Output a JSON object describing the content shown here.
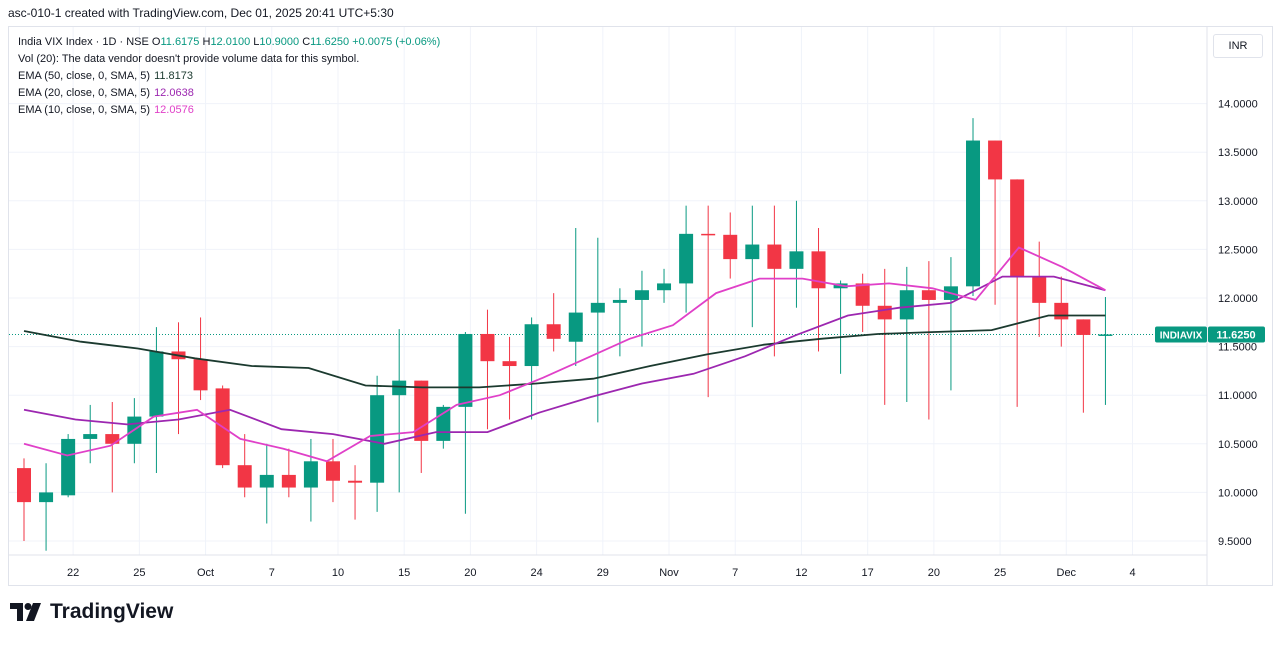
{
  "header": {
    "text": "asc-010-1 created with TradingView.com, Dec 01, 2025 20:41 UTC+5:30"
  },
  "legend": {
    "symbol": "India VIX Index · 1D · NSE",
    "o_label": "O",
    "o": "11.6175",
    "h_label": "H",
    "h": "12.0100",
    "l_label": "L",
    "l": "10.9000",
    "c_label": "C",
    "c": "11.6250",
    "change": "+0.0075 (+0.06%)",
    "vol": "Vol (20): The data vendor doesn't provide volume data for this symbol.",
    "ema50_label": "EMA (50, close, 0, SMA, 5)",
    "ema50_value": "11.8173",
    "ema20_label": "EMA (20, close, 0, SMA, 5)",
    "ema20_value": "12.0638",
    "ema10_label": "EMA (10, close, 0, SMA, 5)",
    "ema10_value": "12.0576"
  },
  "currency": "INR",
  "price_tag": {
    "symbol": "INDIAVIX",
    "value": "11.6250"
  },
  "footer": {
    "brand": "TradingView"
  },
  "colors": {
    "up": "#089981",
    "down": "#f23645",
    "ema50": "#1b3a2f",
    "ema20": "#9c27b0",
    "ema10": "#e040c8"
  },
  "chart_data": {
    "type": "candlestick",
    "yticks": [
      "9.5000",
      "10.0000",
      "10.5000",
      "11.0000",
      "11.5000",
      "12.0000",
      "12.5000",
      "13.0000",
      "13.5000",
      "14.0000"
    ],
    "ylim": [
      9.1,
      14.4
    ],
    "xticks": [
      {
        "label": "22",
        "i": 2
      },
      {
        "label": "25",
        "i": 5
      },
      {
        "label": "Oct",
        "i": 8
      },
      {
        "label": "7",
        "i": 11
      },
      {
        "label": "10",
        "i": 14
      },
      {
        "label": "15",
        "i": 17
      },
      {
        "label": "20",
        "i": 20
      },
      {
        "label": "24",
        "i": 23
      },
      {
        "label": "29",
        "i": 26
      },
      {
        "label": "Nov",
        "i": 29
      },
      {
        "label": "7",
        "i": 32
      },
      {
        "label": "12",
        "i": 35
      },
      {
        "label": "17",
        "i": 38
      },
      {
        "label": "20",
        "i": 41
      },
      {
        "label": "25",
        "i": 44
      },
      {
        "label": "Dec",
        "i": 47
      },
      {
        "label": "4",
        "i": 50
      }
    ],
    "candles": [
      [
        10.25,
        10.35,
        9.5,
        9.9
      ],
      [
        9.9,
        10.3,
        9.4,
        10.0
      ],
      [
        9.97,
        10.6,
        9.95,
        10.55
      ],
      [
        10.55,
        10.9,
        10.3,
        10.6
      ],
      [
        10.6,
        10.93,
        10.0,
        10.5
      ],
      [
        10.5,
        10.97,
        10.3,
        10.78
      ],
      [
        10.78,
        11.7,
        10.2,
        11.45
      ],
      [
        11.45,
        11.75,
        10.6,
        11.37
      ],
      [
        11.37,
        11.8,
        10.95,
        11.05
      ],
      [
        11.07,
        11.1,
        10.25,
        10.28
      ],
      [
        10.28,
        10.6,
        9.95,
        10.05
      ],
      [
        10.05,
        10.5,
        9.68,
        10.18
      ],
      [
        10.18,
        10.45,
        9.95,
        10.05
      ],
      [
        10.05,
        10.55,
        9.7,
        10.32
      ],
      [
        10.32,
        10.55,
        9.9,
        10.12
      ],
      [
        10.12,
        10.28,
        9.72,
        10.1
      ],
      [
        10.1,
        11.2,
        9.8,
        11.0
      ],
      [
        11.0,
        11.68,
        10.0,
        11.15
      ],
      [
        11.15,
        11.15,
        10.2,
        10.53
      ],
      [
        10.53,
        10.9,
        10.45,
        10.88
      ],
      [
        10.88,
        11.65,
        9.78,
        11.63
      ],
      [
        11.63,
        11.88,
        10.65,
        11.35
      ],
      [
        11.35,
        11.6,
        10.75,
        11.3
      ],
      [
        11.3,
        11.8,
        10.75,
        11.73
      ],
      [
        11.73,
        12.05,
        11.45,
        11.58
      ],
      [
        11.55,
        12.72,
        11.3,
        11.85
      ],
      [
        11.85,
        12.62,
        10.72,
        11.95
      ],
      [
        11.95,
        12.1,
        11.4,
        11.98
      ],
      [
        11.98,
        12.28,
        11.5,
        12.08
      ],
      [
        12.08,
        12.3,
        11.95,
        12.15
      ],
      [
        12.15,
        12.95,
        11.85,
        12.66
      ],
      [
        12.66,
        12.95,
        10.98,
        12.65
      ],
      [
        12.65,
        12.88,
        12.2,
        12.4
      ],
      [
        12.4,
        12.95,
        11.7,
        12.55
      ],
      [
        12.55,
        12.95,
        11.4,
        12.3
      ],
      [
        12.3,
        13.0,
        11.9,
        12.48
      ],
      [
        12.48,
        12.72,
        11.45,
        12.1
      ],
      [
        12.1,
        12.18,
        11.22,
        12.15
      ],
      [
        12.15,
        12.25,
        11.65,
        11.92
      ],
      [
        11.92,
        12.3,
        10.9,
        11.78
      ],
      [
        11.78,
        12.32,
        10.93,
        12.08
      ],
      [
        12.08,
        12.38,
        10.75,
        11.98
      ],
      [
        11.98,
        12.42,
        11.05,
        12.12
      ],
      [
        12.12,
        13.85,
        12.02,
        13.62
      ],
      [
        13.62,
        13.62,
        11.93,
        13.22
      ],
      [
        13.22,
        13.22,
        10.88,
        12.22
      ],
      [
        12.22,
        12.58,
        11.6,
        11.95
      ],
      [
        11.95,
        12.22,
        11.5,
        11.78
      ],
      [
        11.78,
        11.78,
        10.82,
        11.62
      ],
      [
        11.6175,
        12.01,
        10.9,
        11.625
      ]
    ],
    "series": [
      {
        "name": "EMA (50, close, 0, SMA, 5)",
        "type": "line",
        "color": "#1b3a2f",
        "x_start": 0,
        "values": [
          11.66,
          11.55,
          11.48,
          11.38,
          11.3,
          11.28,
          11.1,
          11.08,
          11.08,
          11.12,
          11.17,
          11.3,
          11.42,
          11.52,
          11.58,
          11.63,
          11.65,
          11.67,
          11.82,
          11.82
        ]
      },
      {
        "name": "EMA (20, close, 0, SMA, 5)",
        "type": "line",
        "color": "#9c27b0",
        "x_start": 0,
        "values": [
          10.85,
          10.75,
          10.7,
          10.75,
          10.85,
          10.65,
          10.6,
          10.5,
          10.62,
          10.62,
          10.82,
          10.98,
          11.12,
          11.22,
          11.4,
          11.62,
          11.82,
          11.9,
          11.95,
          12.22,
          12.22,
          12.08
        ]
      },
      {
        "name": "EMA (10, close, 0, SMA, 5)",
        "type": "line",
        "color": "#e040c8",
        "x_start": 0,
        "values": [
          10.5,
          10.38,
          10.48,
          10.78,
          10.85,
          10.55,
          10.45,
          10.32,
          10.58,
          10.62,
          10.9,
          11.0,
          11.18,
          11.38,
          11.58,
          11.72,
          12.05,
          12.2,
          12.2,
          12.12,
          12.15,
          12.1,
          11.98,
          12.52,
          12.32,
          12.08
        ]
      }
    ]
  }
}
